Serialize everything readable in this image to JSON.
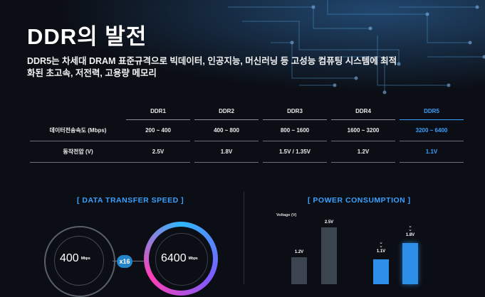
{
  "title": "DDR의 발전",
  "subtitle": "DDR5는 차세대 DRAM 표준규격으로 빅데이터, 인공지능, 머신러닝 등 고성능 컴퓨팅 시스템에 최적화된 초고속, 저전력, 고용량 메모리",
  "table": {
    "columns": [
      "DDR1",
      "DDR2",
      "DDR3",
      "DDR4",
      "DDR5"
    ],
    "rows": [
      {
        "label": "데이터전송속도 (Mbps)",
        "values": [
          "200 ~ 400",
          "400 ~ 800",
          "800 ~ 1600",
          "1600 ~ 3200",
          "3200 ~ 6400"
        ]
      },
      {
        "label": "동작전압 (V)",
        "values": [
          "2.5V",
          "1.8V",
          "1.5V / 1.35V",
          "1.2V",
          "1.1V"
        ]
      }
    ]
  },
  "speed_section": {
    "title": "[ DATA TRANSFER SPEED ]",
    "from_value": "400",
    "from_unit": "Mbps",
    "multiplier": "x16",
    "to_value": "6400",
    "to_unit": "Mbps"
  },
  "power_section": {
    "title": "[ POWER CONSUMPTION ]",
    "axis_label": "Voltage (V)",
    "bars": [
      {
        "label": "1.2V",
        "value": 1.2,
        "color": "#3c4450"
      },
      {
        "label": "2.5V",
        "value": 2.5,
        "color": "#3c4450"
      },
      {
        "label": "1.1V",
        "value": 1.1,
        "color": "#2e8fe8"
      },
      {
        "label": "1.8V",
        "value": 1.8,
        "color": "#2e8fe8"
      }
    ]
  },
  "colors": {
    "accent": "#3aa0ff",
    "background": "#0b0e14"
  }
}
